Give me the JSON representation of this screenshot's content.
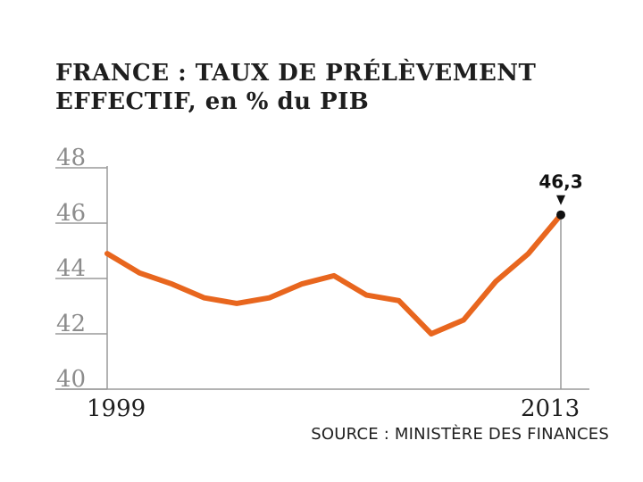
{
  "title_line1": "FRANCE : TAUX DE PRÉLÈVEMENT",
  "title_line2": "EFFECTIF, en % du PIB",
  "source": "SOURCE : MINISTÈRE DES FINANCES",
  "chart_data": {
    "type": "line",
    "title": "FRANCE : TAUX DE PRÉLÈVEMENT EFFECTIF, en % du PIB",
    "xlabel": "",
    "ylabel": "",
    "x": [
      1999,
      2000,
      2001,
      2002,
      2003,
      2004,
      2005,
      2006,
      2007,
      2008,
      2009,
      2010,
      2011,
      2012,
      2013
    ],
    "y": [
      44.9,
      44.2,
      43.8,
      43.3,
      43.1,
      43.3,
      43.8,
      44.1,
      43.4,
      43.2,
      42.0,
      42.5,
      43.9,
      44.9,
      46.3
    ],
    "x_tick_labels": [
      "1999",
      "2013"
    ],
    "y_ticks": [
      40,
      42,
      44,
      46,
      48
    ],
    "y_tick_labels": [
      "40",
      "42",
      "44",
      "46",
      "48"
    ],
    "ylim": [
      40,
      48
    ],
    "xlim": [
      1999,
      2013
    ],
    "annotation": {
      "x": 2013,
      "y": 46.3,
      "text": "46,3"
    },
    "grid": false,
    "line_color": "#e8661e",
    "axis_color": "#9a9a9a",
    "label_color": "#8c8c8c"
  }
}
